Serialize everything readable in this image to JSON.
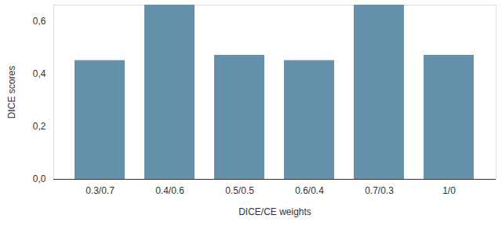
{
  "chart_data": {
    "type": "bar",
    "categories": [
      "0.3/0.7",
      "0.4/0.6",
      "0.5/0.5",
      "0.6/0.4",
      "0.7/0.3",
      "1/0"
    ],
    "values": [
      0.45,
      0.66,
      0.47,
      0.45,
      0.66,
      0.47
    ],
    "color": "#6591ab",
    "x_label": "DICE/CE weights",
    "y_label": "DICE scores",
    "ylim": [
      0,
      0.66
    ],
    "yticks": [
      {
        "value": 0,
        "label": "0,0"
      },
      {
        "value": 0.2,
        "label": "0,2"
      },
      {
        "value": 0.4,
        "label": "0,4"
      },
      {
        "value": 0.6,
        "label": "0,6"
      }
    ],
    "grid": false
  }
}
